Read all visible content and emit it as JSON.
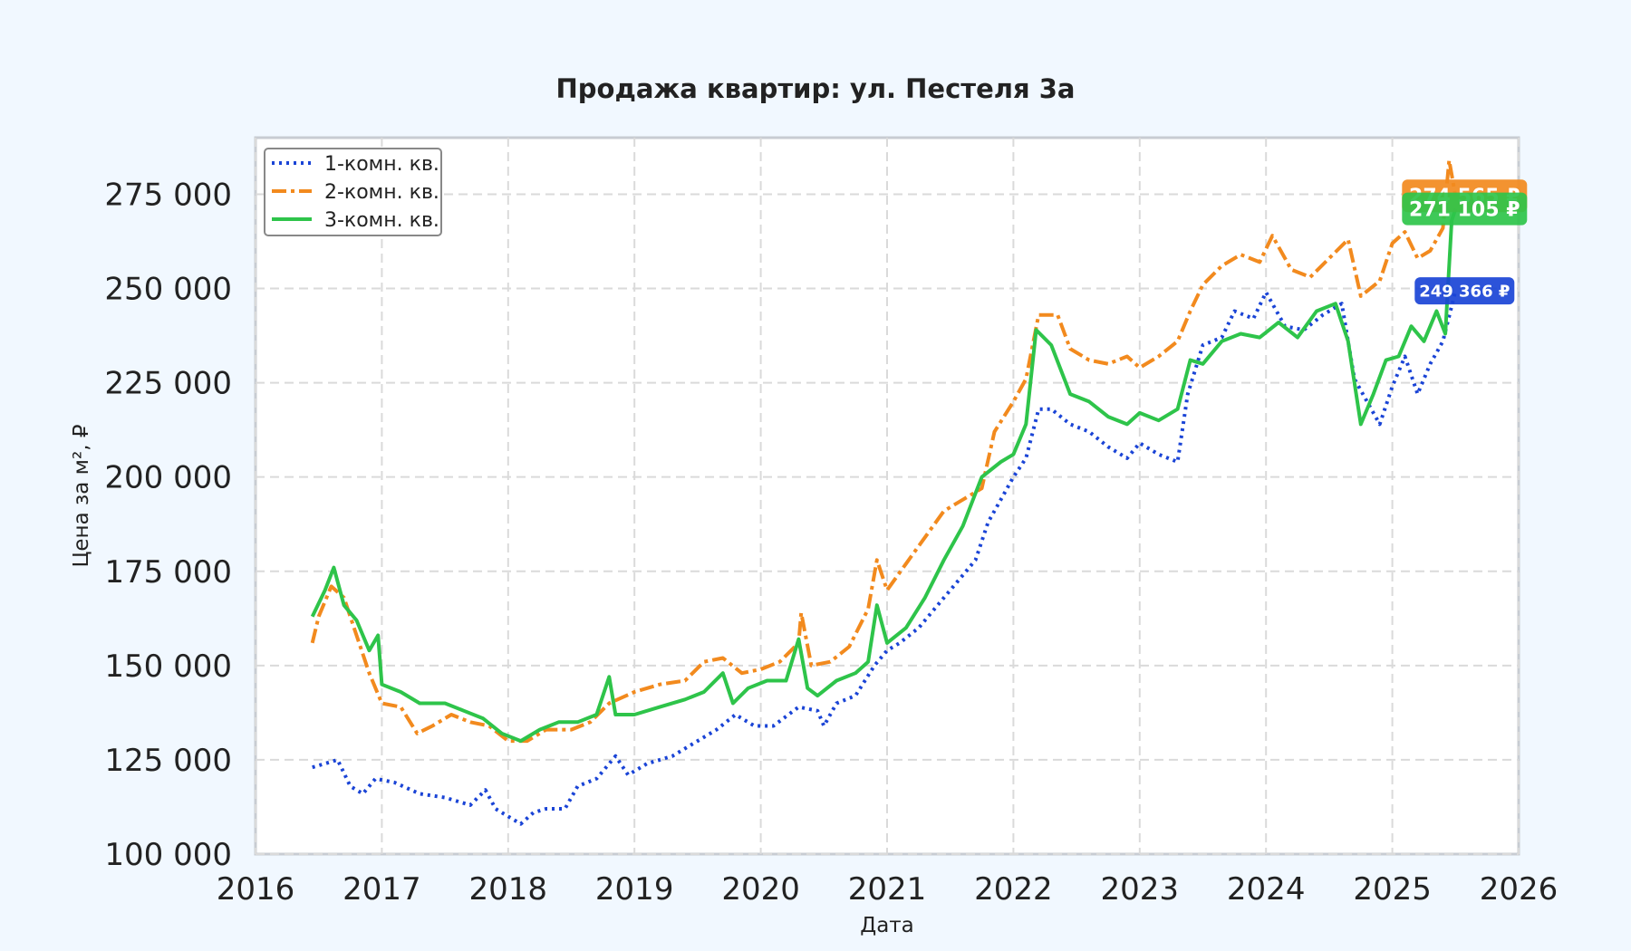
{
  "chart_data": {
    "type": "line",
    "title": "Продажа квартир: ул. Пестеля 3а",
    "xlabel": "Дата",
    "ylabel": "Цена за м², ₽",
    "xlim": [
      2016,
      2026
    ],
    "ylim": [
      100000,
      290000
    ],
    "x_ticks": [
      "2016",
      "2017",
      "2018",
      "2019",
      "2020",
      "2021",
      "2022",
      "2023",
      "2024",
      "2025",
      "2026"
    ],
    "y_ticks": [
      "100 000",
      "125 000",
      "150 000",
      "175 000",
      "200 000",
      "225 000",
      "250 000",
      "275 000"
    ],
    "grid": true,
    "legend_position": "top-left",
    "series": [
      {
        "name": "1-комн. кв.",
        "color": "#1a44d6",
        "style": "dotted",
        "end_label": "249 366 ₽",
        "points": [
          [
            2016.45,
            123000
          ],
          [
            2016.55,
            124000
          ],
          [
            2016.65,
            125000
          ],
          [
            2016.75,
            118000
          ],
          [
            2016.85,
            116000
          ],
          [
            2016.95,
            120000
          ],
          [
            2017.1,
            119000
          ],
          [
            2017.3,
            116000
          ],
          [
            2017.5,
            115000
          ],
          [
            2017.7,
            113000
          ],
          [
            2017.82,
            117000
          ],
          [
            2017.9,
            112000
          ],
          [
            2018.0,
            110000
          ],
          [
            2018.1,
            108000
          ],
          [
            2018.2,
            111000
          ],
          [
            2018.3,
            112000
          ],
          [
            2018.45,
            112000
          ],
          [
            2018.55,
            118000
          ],
          [
            2018.7,
            120000
          ],
          [
            2018.85,
            126000
          ],
          [
            2018.95,
            121000
          ],
          [
            2019.1,
            124000
          ],
          [
            2019.3,
            126000
          ],
          [
            2019.5,
            130000
          ],
          [
            2019.65,
            133000
          ],
          [
            2019.8,
            137000
          ],
          [
            2019.95,
            134000
          ],
          [
            2020.1,
            134000
          ],
          [
            2020.3,
            139000
          ],
          [
            2020.45,
            138000
          ],
          [
            2020.5,
            134000
          ],
          [
            2020.6,
            140000
          ],
          [
            2020.75,
            142000
          ],
          [
            2020.9,
            150000
          ],
          [
            2021.0,
            154000
          ],
          [
            2021.1,
            156000
          ],
          [
            2021.25,
            160000
          ],
          [
            2021.4,
            166000
          ],
          [
            2021.55,
            172000
          ],
          [
            2021.7,
            178000
          ],
          [
            2021.8,
            188000
          ],
          [
            2021.9,
            194000
          ],
          [
            2022.0,
            200000
          ],
          [
            2022.1,
            205000
          ],
          [
            2022.2,
            218000
          ],
          [
            2022.3,
            218000
          ],
          [
            2022.45,
            214000
          ],
          [
            2022.6,
            212000
          ],
          [
            2022.75,
            208000
          ],
          [
            2022.9,
            205000
          ],
          [
            2023.0,
            209000
          ],
          [
            2023.15,
            206000
          ],
          [
            2023.3,
            204000
          ],
          [
            2023.38,
            222000
          ],
          [
            2023.5,
            235000
          ],
          [
            2023.65,
            237000
          ],
          [
            2023.75,
            244000
          ],
          [
            2023.9,
            242000
          ],
          [
            2024.0,
            249000
          ],
          [
            2024.15,
            240000
          ],
          [
            2024.3,
            239000
          ],
          [
            2024.45,
            243000
          ],
          [
            2024.6,
            246000
          ],
          [
            2024.7,
            226000
          ],
          [
            2024.8,
            220000
          ],
          [
            2024.9,
            214000
          ],
          [
            2025.0,
            224000
          ],
          [
            2025.1,
            232000
          ],
          [
            2025.2,
            222000
          ],
          [
            2025.3,
            230000
          ],
          [
            2025.4,
            236000
          ],
          [
            2025.5,
            249366
          ]
        ]
      },
      {
        "name": "2-комн. кв.",
        "color": "#f28a1e",
        "style": "dashdot",
        "end_label": "274 565 ₽",
        "points": [
          [
            2016.45,
            156000
          ],
          [
            2016.5,
            163000
          ],
          [
            2016.6,
            171000
          ],
          [
            2016.7,
            168000
          ],
          [
            2016.8,
            158000
          ],
          [
            2016.9,
            148000
          ],
          [
            2017.0,
            140000
          ],
          [
            2017.15,
            139000
          ],
          [
            2017.28,
            132000
          ],
          [
            2017.4,
            134000
          ],
          [
            2017.55,
            137000
          ],
          [
            2017.7,
            135000
          ],
          [
            2017.85,
            134000
          ],
          [
            2018.0,
            130000
          ],
          [
            2018.15,
            130000
          ],
          [
            2018.3,
            133000
          ],
          [
            2018.5,
            133000
          ],
          [
            2018.65,
            135000
          ],
          [
            2018.8,
            140000
          ],
          [
            2019.0,
            143000
          ],
          [
            2019.2,
            145000
          ],
          [
            2019.4,
            146000
          ],
          [
            2019.55,
            151000
          ],
          [
            2019.7,
            152000
          ],
          [
            2019.85,
            148000
          ],
          [
            2020.0,
            149000
          ],
          [
            2020.15,
            151000
          ],
          [
            2020.3,
            156000
          ],
          [
            2020.32,
            164000
          ],
          [
            2020.4,
            150000
          ],
          [
            2020.55,
            151000
          ],
          [
            2020.7,
            155000
          ],
          [
            2020.85,
            165000
          ],
          [
            2020.92,
            178000
          ],
          [
            2021.0,
            170000
          ],
          [
            2021.15,
            177000
          ],
          [
            2021.3,
            184000
          ],
          [
            2021.45,
            191000
          ],
          [
            2021.6,
            194000
          ],
          [
            2021.75,
            197000
          ],
          [
            2021.85,
            212000
          ],
          [
            2022.0,
            220000
          ],
          [
            2022.1,
            226000
          ],
          [
            2022.2,
            243000
          ],
          [
            2022.35,
            243000
          ],
          [
            2022.45,
            234000
          ],
          [
            2022.6,
            231000
          ],
          [
            2022.75,
            230000
          ],
          [
            2022.9,
            232000
          ],
          [
            2023.0,
            229000
          ],
          [
            2023.15,
            232000
          ],
          [
            2023.3,
            236000
          ],
          [
            2023.4,
            244000
          ],
          [
            2023.5,
            251000
          ],
          [
            2023.65,
            256000
          ],
          [
            2023.8,
            259000
          ],
          [
            2023.95,
            257000
          ],
          [
            2024.05,
            264000
          ],
          [
            2024.2,
            255000
          ],
          [
            2024.35,
            253000
          ],
          [
            2024.5,
            258000
          ],
          [
            2024.65,
            263000
          ],
          [
            2024.75,
            248000
          ],
          [
            2024.9,
            252000
          ],
          [
            2025.0,
            262000
          ],
          [
            2025.1,
            265000
          ],
          [
            2025.2,
            258000
          ],
          [
            2025.3,
            260000
          ],
          [
            2025.4,
            266000
          ],
          [
            2025.45,
            284000
          ],
          [
            2025.5,
            274565
          ]
        ]
      },
      {
        "name": "3-комн. кв.",
        "color": "#2ec44a",
        "style": "solid",
        "end_label": "271 105 ₽",
        "points": [
          [
            2016.45,
            163000
          ],
          [
            2016.55,
            170000
          ],
          [
            2016.62,
            176000
          ],
          [
            2016.7,
            166000
          ],
          [
            2016.8,
            162000
          ],
          [
            2016.9,
            154000
          ],
          [
            2016.97,
            158000
          ],
          [
            2017.0,
            145000
          ],
          [
            2017.15,
            143000
          ],
          [
            2017.3,
            140000
          ],
          [
            2017.5,
            140000
          ],
          [
            2017.65,
            138000
          ],
          [
            2017.8,
            136000
          ],
          [
            2017.95,
            132000
          ],
          [
            2018.1,
            130000
          ],
          [
            2018.25,
            133000
          ],
          [
            2018.4,
            135000
          ],
          [
            2018.55,
            135000
          ],
          [
            2018.7,
            137000
          ],
          [
            2018.8,
            147000
          ],
          [
            2018.85,
            137000
          ],
          [
            2019.0,
            137000
          ],
          [
            2019.2,
            139000
          ],
          [
            2019.4,
            141000
          ],
          [
            2019.55,
            143000
          ],
          [
            2019.7,
            148000
          ],
          [
            2019.78,
            140000
          ],
          [
            2019.9,
            144000
          ],
          [
            2020.05,
            146000
          ],
          [
            2020.2,
            146000
          ],
          [
            2020.3,
            157000
          ],
          [
            2020.37,
            144000
          ],
          [
            2020.45,
            142000
          ],
          [
            2020.6,
            146000
          ],
          [
            2020.75,
            148000
          ],
          [
            2020.85,
            151000
          ],
          [
            2020.92,
            166000
          ],
          [
            2021.0,
            156000
          ],
          [
            2021.15,
            160000
          ],
          [
            2021.3,
            168000
          ],
          [
            2021.45,
            178000
          ],
          [
            2021.6,
            187000
          ],
          [
            2021.75,
            200000
          ],
          [
            2021.9,
            204000
          ],
          [
            2022.0,
            206000
          ],
          [
            2022.1,
            214000
          ],
          [
            2022.18,
            239000
          ],
          [
            2022.3,
            235000
          ],
          [
            2022.45,
            222000
          ],
          [
            2022.6,
            220000
          ],
          [
            2022.75,
            216000
          ],
          [
            2022.9,
            214000
          ],
          [
            2023.0,
            217000
          ],
          [
            2023.15,
            215000
          ],
          [
            2023.3,
            218000
          ],
          [
            2023.4,
            231000
          ],
          [
            2023.5,
            230000
          ],
          [
            2023.65,
            236000
          ],
          [
            2023.8,
            238000
          ],
          [
            2023.95,
            237000
          ],
          [
            2024.1,
            241000
          ],
          [
            2024.25,
            237000
          ],
          [
            2024.4,
            244000
          ],
          [
            2024.55,
            246000
          ],
          [
            2024.65,
            236000
          ],
          [
            2024.75,
            214000
          ],
          [
            2024.85,
            222000
          ],
          [
            2024.95,
            231000
          ],
          [
            2025.05,
            232000
          ],
          [
            2025.15,
            240000
          ],
          [
            2025.25,
            236000
          ],
          [
            2025.35,
            244000
          ],
          [
            2025.42,
            238000
          ],
          [
            2025.47,
            268000
          ],
          [
            2025.5,
            271105
          ]
        ]
      }
    ]
  }
}
